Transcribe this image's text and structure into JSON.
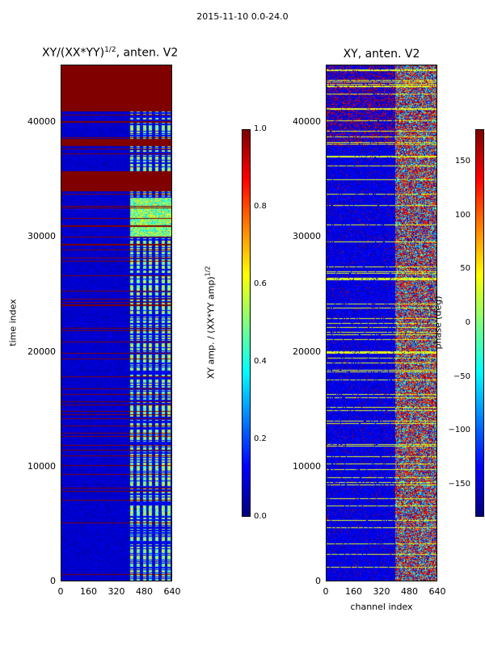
{
  "suptitle": "2015-11-10 0.0-24.0",
  "chart_data": [
    {
      "type": "heatmap",
      "title": "XY/(XX*YY)^{1/2}, anten. V2",
      "title_main": "XY/(XX*YY)",
      "title_sup": "1/2",
      "title_tail": ", anten. V2",
      "xlabel": "",
      "ylabel": "time index",
      "xlim": [
        0,
        640
      ],
      "ylim": [
        0,
        45000
      ],
      "xticks": [
        "0",
        "160",
        "320",
        "480",
        "640"
      ],
      "yticks": [
        "0",
        "10000",
        "20000",
        "30000",
        "40000"
      ],
      "colorbar": {
        "label_main": "XY amp. / (XX*YY amp)",
        "label_sup": "1/2",
        "range": [
          0.0,
          1.0
        ],
        "ticks": [
          "0.0",
          "0.2",
          "0.4",
          "0.6",
          "0.8",
          "1.0"
        ],
        "colormap": "jet"
      },
      "description_bands": {
        "saturated_time_ranges": [
          [
            34000,
            35800
          ],
          [
            38000,
            38600
          ],
          [
            41000,
            45000
          ]
        ],
        "active_channel_range": [
          400,
          640
        ]
      }
    },
    {
      "type": "heatmap",
      "title": "XY, anten. V2",
      "xlabel": "channel index",
      "ylabel": "",
      "xlim": [
        0,
        640
      ],
      "ylim": [
        0,
        45000
      ],
      "xticks": [
        "0",
        "160",
        "320",
        "480",
        "640"
      ],
      "yticks": [
        "0",
        "10000",
        "20000",
        "30000",
        "40000"
      ],
      "colorbar": {
        "label": "phase (deg)",
        "range": [
          -180,
          180
        ],
        "ticks": [
          "−150",
          "−100",
          "−50",
          "0",
          "50",
          "100",
          "150"
        ],
        "colormap": "jet"
      },
      "description_bands": {
        "active_channel_range": [
          400,
          640
        ]
      }
    }
  ]
}
